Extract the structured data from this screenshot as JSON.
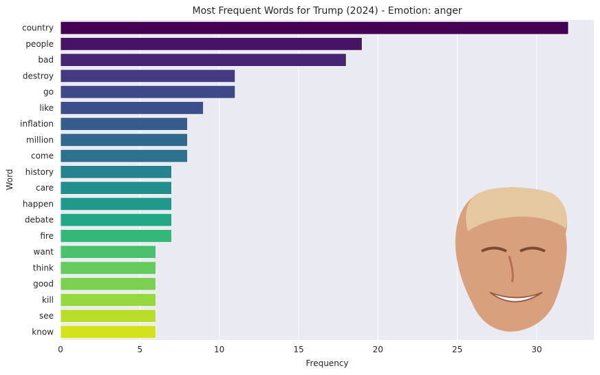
{
  "chart_data": {
    "type": "bar",
    "orientation": "horizontal",
    "title": "Most Frequent Words for Trump (2024) - Emotion: anger",
    "xlabel": "Frequency",
    "ylabel": "Word",
    "categories": [
      "country",
      "people",
      "bad",
      "destroy",
      "go",
      "like",
      "inflation",
      "million",
      "come",
      "history",
      "care",
      "happen",
      "debate",
      "fire",
      "want",
      "think",
      "good",
      "kill",
      "see",
      "know"
    ],
    "values": [
      32,
      19,
      18,
      11,
      11,
      9,
      8,
      8,
      8,
      7,
      7,
      7,
      7,
      7,
      6,
      6,
      6,
      6,
      6,
      6
    ],
    "colors": [
      "#440154",
      "#471365",
      "#482475",
      "#443983",
      "#3f4889",
      "#3c4f8a",
      "#365c8d",
      "#31688e",
      "#2c728e",
      "#26828e",
      "#218e8d",
      "#1f998a",
      "#22a884",
      "#35b779",
      "#4ac16d",
      "#65cb5e",
      "#7ad151",
      "#95d840",
      "#b8de29",
      "#d3e21b"
    ],
    "xticks": [
      0,
      5,
      10,
      15,
      20,
      25,
      30
    ],
    "xlim": [
      0,
      33.6
    ],
    "grid": true,
    "background": "#eaeaf2",
    "legend": "none"
  },
  "overlay": {
    "icon": "trump-face-photo-icon"
  }
}
